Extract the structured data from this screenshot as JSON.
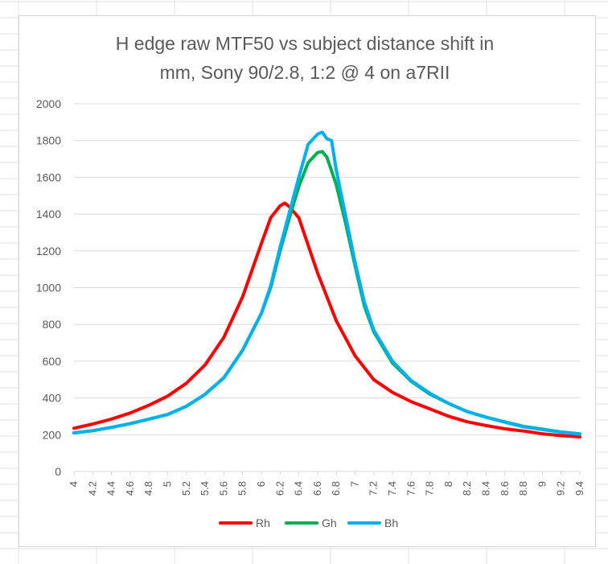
{
  "chart_data": {
    "type": "line",
    "title": "H edge raw MTF50 vs subject distance shift in mm, Sony 90/2.8, 1:2 @ 4 on a7RII",
    "title_lines": [
      "H edge raw MTF50 vs subject distance shift in",
      "mm, Sony 90/2.8, 1:2 @ 4 on a7RII"
    ],
    "xlabel": "",
    "ylabel": "",
    "xlim": [
      4,
      9.4
    ],
    "ylim": [
      0,
      2000
    ],
    "y_ticks": [
      "0",
      "200",
      "400",
      "600",
      "800",
      "1000",
      "1200",
      "1400",
      "1600",
      "1800",
      "2000"
    ],
    "x_ticks": [
      "4",
      "4.2",
      "4.4",
      "4.6",
      "4.8",
      "5",
      "5.2",
      "5.4",
      "5.6",
      "5.8",
      "6",
      "6.2",
      "6.4",
      "6.6",
      "6.8",
      "7",
      "7.2",
      "7.4",
      "7.6",
      "7.8",
      "8",
      "8.2",
      "8.4",
      "8.6",
      "8.8",
      "9",
      "9.2",
      "9.4"
    ],
    "grid": "horizontal",
    "legend_position": "bottom",
    "series": [
      {
        "name": "Rh",
        "color": "#ff0000",
        "points": [
          [
            4.0,
            235
          ],
          [
            4.2,
            258
          ],
          [
            4.4,
            285
          ],
          [
            4.6,
            318
          ],
          [
            4.8,
            360
          ],
          [
            5.0,
            410
          ],
          [
            5.2,
            480
          ],
          [
            5.4,
            580
          ],
          [
            5.6,
            730
          ],
          [
            5.8,
            950
          ],
          [
            6.0,
            1240
          ],
          [
            6.1,
            1380
          ],
          [
            6.2,
            1445
          ],
          [
            6.25,
            1460
          ],
          [
            6.3,
            1440
          ],
          [
            6.4,
            1380
          ],
          [
            6.5,
            1230
          ],
          [
            6.6,
            1080
          ],
          [
            6.7,
            950
          ],
          [
            6.8,
            820
          ],
          [
            7.0,
            630
          ],
          [
            7.2,
            500
          ],
          [
            7.4,
            430
          ],
          [
            7.6,
            380
          ],
          [
            7.8,
            340
          ],
          [
            8.0,
            300
          ],
          [
            8.2,
            270
          ],
          [
            8.4,
            250
          ],
          [
            8.6,
            232
          ],
          [
            8.8,
            220
          ],
          [
            9.0,
            205
          ],
          [
            9.2,
            195
          ],
          [
            9.4,
            188
          ]
        ]
      },
      {
        "name": "Gh",
        "color": "#00b050",
        "points": [
          [
            4.0,
            210
          ],
          [
            4.2,
            222
          ],
          [
            4.4,
            240
          ],
          [
            4.6,
            260
          ],
          [
            4.8,
            285
          ],
          [
            5.0,
            310
          ],
          [
            5.2,
            355
          ],
          [
            5.4,
            420
          ],
          [
            5.6,
            510
          ],
          [
            5.8,
            660
          ],
          [
            6.0,
            860
          ],
          [
            6.1,
            1000
          ],
          [
            6.2,
            1200
          ],
          [
            6.3,
            1380
          ],
          [
            6.4,
            1550
          ],
          [
            6.5,
            1680
          ],
          [
            6.6,
            1735
          ],
          [
            6.65,
            1740
          ],
          [
            6.7,
            1710
          ],
          [
            6.8,
            1560
          ],
          [
            6.9,
            1350
          ],
          [
            7.0,
            1120
          ],
          [
            7.1,
            900
          ],
          [
            7.2,
            760
          ],
          [
            7.4,
            590
          ],
          [
            7.6,
            490
          ],
          [
            7.8,
            420
          ],
          [
            8.0,
            370
          ],
          [
            8.2,
            325
          ],
          [
            8.4,
            295
          ],
          [
            8.6,
            270
          ],
          [
            8.8,
            245
          ],
          [
            9.0,
            230
          ],
          [
            9.2,
            215
          ],
          [
            9.4,
            205
          ]
        ]
      },
      {
        "name": "Bh",
        "color": "#00b0f0",
        "points": [
          [
            4.0,
            210
          ],
          [
            4.2,
            222
          ],
          [
            4.4,
            240
          ],
          [
            4.6,
            260
          ],
          [
            4.8,
            285
          ],
          [
            5.0,
            310
          ],
          [
            5.2,
            355
          ],
          [
            5.4,
            420
          ],
          [
            5.6,
            510
          ],
          [
            5.8,
            660
          ],
          [
            6.0,
            860
          ],
          [
            6.1,
            1010
          ],
          [
            6.2,
            1220
          ],
          [
            6.3,
            1410
          ],
          [
            6.4,
            1600
          ],
          [
            6.5,
            1780
          ],
          [
            6.6,
            1835
          ],
          [
            6.65,
            1845
          ],
          [
            6.7,
            1810
          ],
          [
            6.75,
            1800
          ],
          [
            6.8,
            1640
          ],
          [
            6.9,
            1390
          ],
          [
            7.0,
            1140
          ],
          [
            7.1,
            920
          ],
          [
            7.2,
            770
          ],
          [
            7.4,
            600
          ],
          [
            7.6,
            495
          ],
          [
            7.8,
            425
          ],
          [
            8.0,
            370
          ],
          [
            8.2,
            325
          ],
          [
            8.4,
            295
          ],
          [
            8.6,
            268
          ],
          [
            8.8,
            243
          ],
          [
            9.0,
            228
          ],
          [
            9.2,
            214
          ],
          [
            9.4,
            203
          ]
        ]
      }
    ]
  }
}
